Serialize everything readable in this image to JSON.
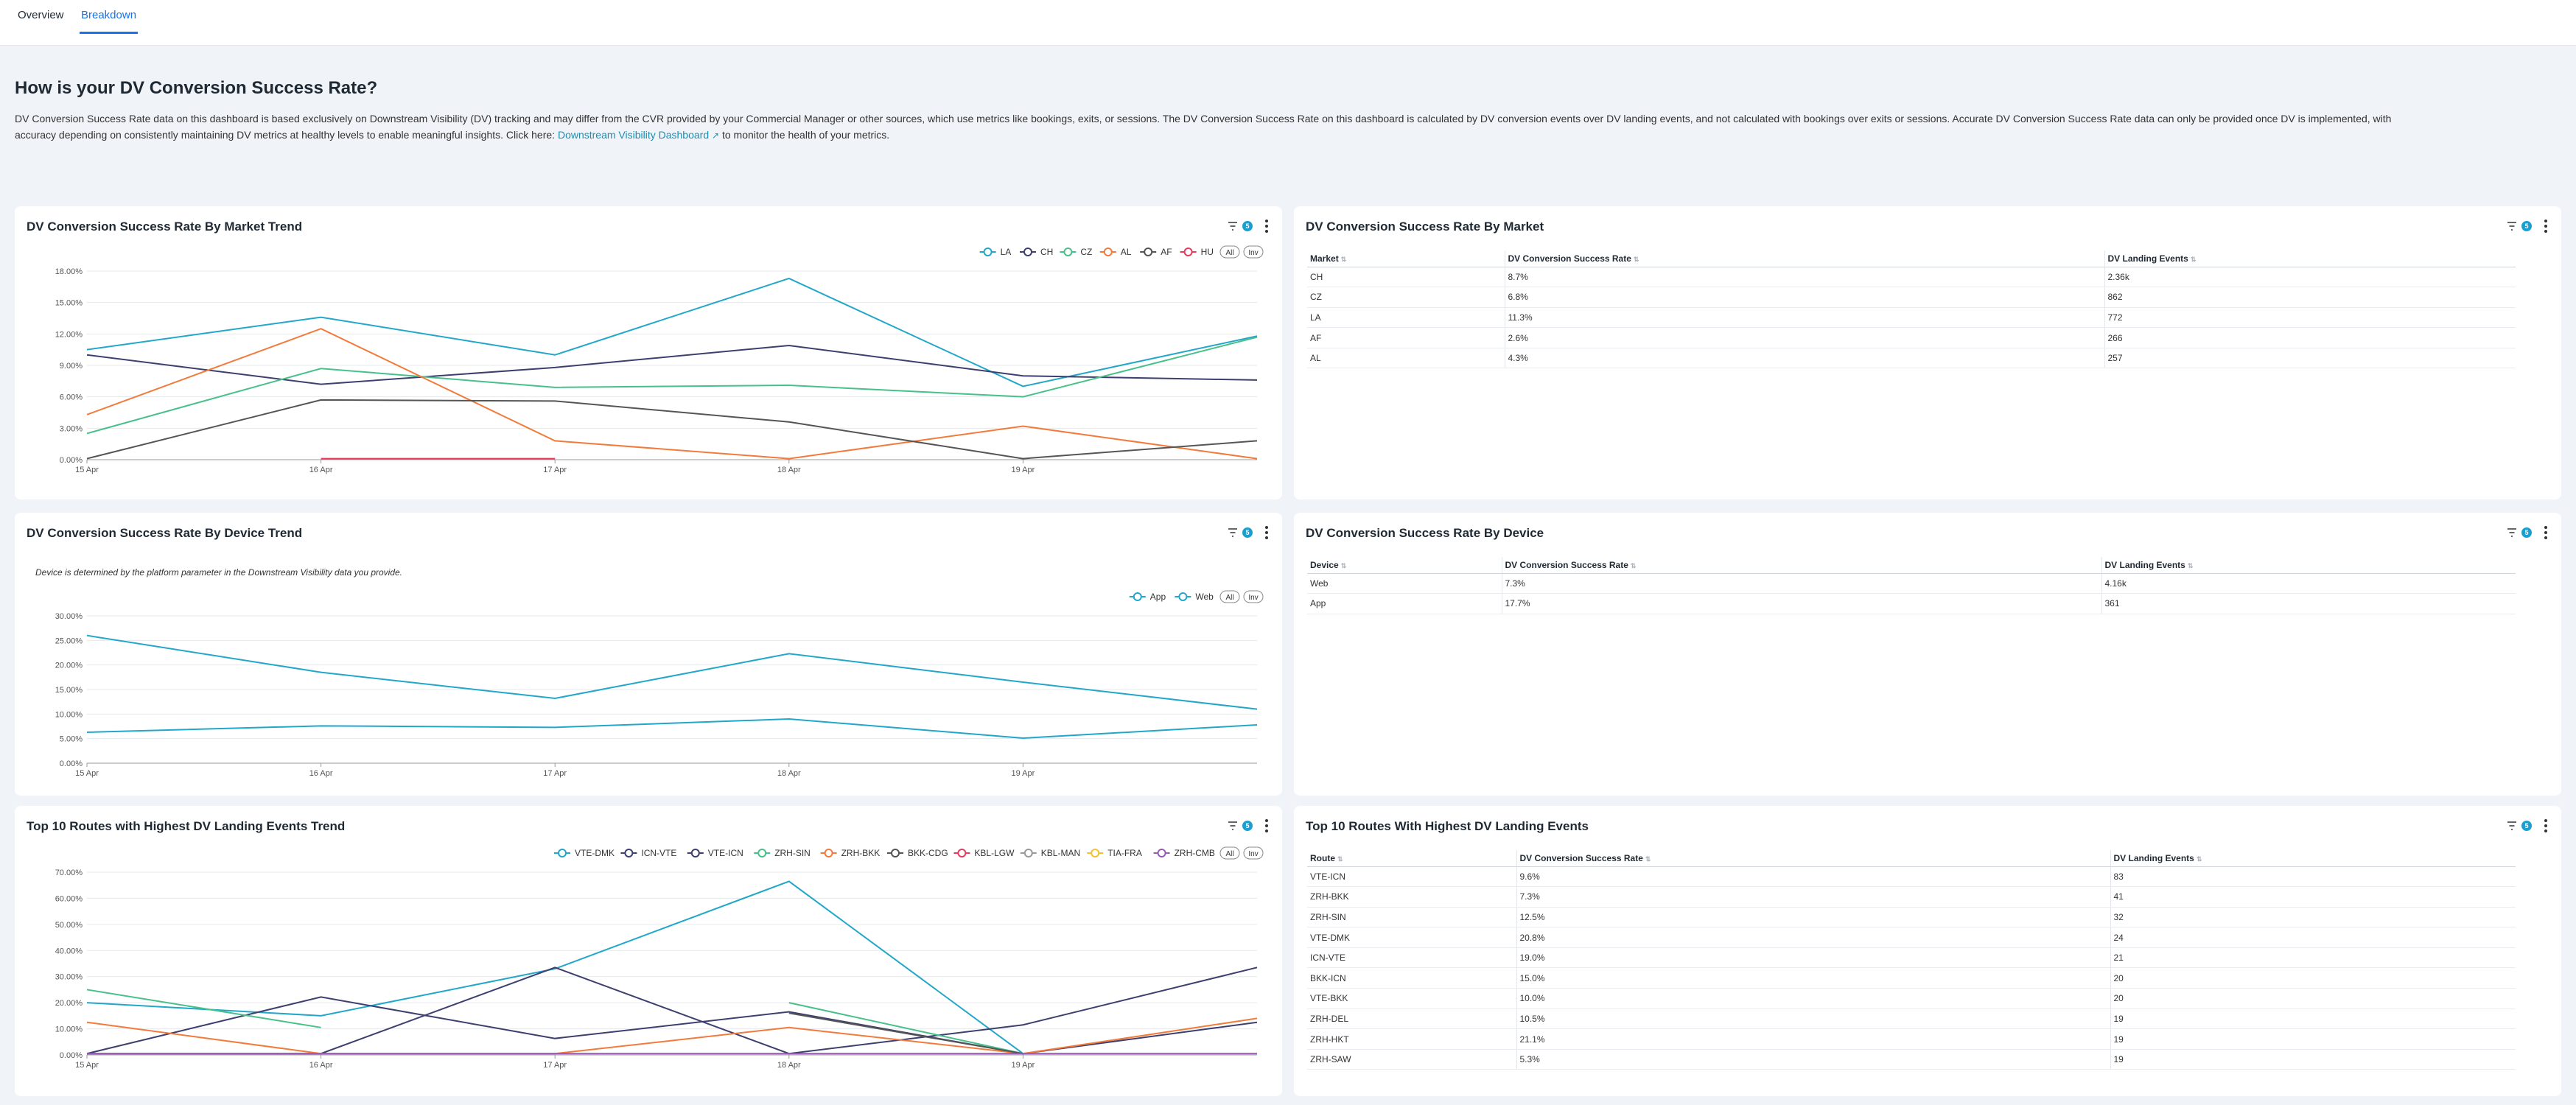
{
  "tabs": [
    {
      "label": "Overview"
    },
    {
      "label": "Breakdown"
    }
  ],
  "header": {
    "title": "How is your DV Conversion Success Rate?",
    "para1": "DV Conversion Success Rate data on this dashboard is based exclusively on Downstream Visibility (DV) tracking and may differ from the CVR provided by your Commercial Manager or other sources, which use metrics like bookings, exits, or sessions. The DV Conversion Success Rate on this dashboard is calculated by DV conversion events over DV landing events, and not calculated with bookings over exits or sessions. Accurate DV Conversion Success Rate data can only be provided once DV is implemented, with",
    "para2_pre": "accuracy depending on consistently maintaining DV metrics at healthy levels to enable meaningful insights. Click here: ",
    "link": "Downstream Visibility Dashboard",
    "para2_post": " to monitor the health of your metrics."
  },
  "colors": {
    "accent": "#1a73e8",
    "badge": "#1a9fd1",
    "LA": "#22a7c9",
    "CH": "#3d3f6e",
    "CZ": "#47c08a",
    "AL": "#f27b3c",
    "AF": "#555555",
    "HU": "#e83a5e",
    "App": "#22a7c9",
    "Web": "#22a7c9",
    "VTE-DMK": "#22a7c9",
    "ICN-VTE": "#3d3f6e",
    "VTE-ICN": "#3d3f6e",
    "ZRH-SIN": "#47c08a",
    "ZRH-BKK": "#f27b3c",
    "BKK-CDG": "#555555",
    "KBL-LGW": "#e83a5e",
    "KBL-MAN": "#999999",
    "TIA-FRA": "#f2c230",
    "ZRH-CMB": "#9b59b6"
  },
  "cards": {
    "market_trend": {
      "title": "DV Conversion Success Rate By Market Trend",
      "filter_count": "5"
    },
    "market_table": {
      "title": "DV Conversion Success Rate By Market",
      "filter_count": "5"
    },
    "device_trend": {
      "title": "DV Conversion Success Rate By Device Trend",
      "filter_count": "5",
      "note": "Device is determined by the platform parameter in the Downstream Visibility data you provide."
    },
    "device_table": {
      "title": "DV Conversion Success Rate By Device",
      "filter_count": "5"
    },
    "routes_trend": {
      "title": "Top 10 Routes with Highest DV Landing Events Trend",
      "filter_count": "5"
    },
    "routes_table": {
      "title": "Top 10 Routes With Highest DV Landing Events",
      "filter_count": "5"
    }
  },
  "legend_buttons": {
    "all": "All",
    "inv": "Inv"
  },
  "chart_data": [
    {
      "id": "market",
      "type": "line",
      "x": [
        "15 Apr",
        "16 Apr",
        "17 Apr",
        "18 Apr",
        "19 Apr",
        "20 Apr"
      ],
      "xticks": [
        "15 Apr",
        "16 Apr",
        "17 Apr",
        "18 Apr",
        "19 Apr"
      ],
      "yticks": [
        "0.00%",
        "3.00%",
        "6.00%",
        "9.00%",
        "12.00%",
        "15.00%",
        "18.00%"
      ],
      "ylim": [
        0,
        18
      ],
      "series": [
        {
          "name": "LA",
          "values": [
            10.5,
            13.6,
            10.0,
            17.3,
            7.0,
            11.8
          ]
        },
        {
          "name": "CH",
          "values": [
            10.0,
            7.2,
            8.8,
            10.9,
            8.0,
            7.6
          ]
        },
        {
          "name": "CZ",
          "values": [
            2.5,
            8.7,
            6.9,
            7.1,
            6.0,
            11.7
          ]
        },
        {
          "name": "AL",
          "values": [
            4.3,
            12.5,
            1.8,
            0.1,
            3.2,
            0.1
          ]
        },
        {
          "name": "AF",
          "values": [
            0.1,
            5.7,
            5.6,
            3.6,
            0.1,
            1.8
          ]
        },
        {
          "name": "HU",
          "values": [
            null,
            0.1,
            0.1,
            null,
            null,
            null
          ]
        }
      ]
    },
    {
      "id": "device",
      "type": "line",
      "x": [
        "15 Apr",
        "16 Apr",
        "17 Apr",
        "18 Apr",
        "19 Apr",
        "20 Apr"
      ],
      "xticks": [
        "15 Apr",
        "16 Apr",
        "17 Apr",
        "18 Apr",
        "19 Apr"
      ],
      "yticks": [
        "0.00%",
        "5.00%",
        "10.00%",
        "15.00%",
        "20.00%",
        "25.00%",
        "30.00%"
      ],
      "ylim": [
        0,
        30
      ],
      "series": [
        {
          "name": "App",
          "values": [
            26.0,
            18.5,
            13.2,
            22.3,
            16.5,
            11.0
          ]
        },
        {
          "name": "Web",
          "values": [
            6.3,
            7.6,
            7.3,
            9.0,
            5.1,
            7.8
          ]
        }
      ]
    },
    {
      "id": "routes",
      "type": "line",
      "x": [
        "15 Apr",
        "16 Apr",
        "17 Apr",
        "18 Apr",
        "19 Apr",
        "20 Apr"
      ],
      "xticks": [
        "15 Apr",
        "16 Apr",
        "17 Apr",
        "18 Apr",
        "19 Apr"
      ],
      "yticks": [
        "0.00%",
        "10.00%",
        "20.00%",
        "30.00%",
        "40.00%",
        "50.00%",
        "60.00%",
        "70.00%"
      ],
      "ylim": [
        0,
        70
      ],
      "series": [
        {
          "name": "VTE-DMK",
          "values": [
            20.0,
            15.0,
            33.0,
            66.5,
            0.5,
            null
          ]
        },
        {
          "name": "ICN-VTE",
          "values": [
            0.5,
            0.5,
            33.5,
            0.5,
            11.5,
            33.5
          ]
        },
        {
          "name": "VTE-ICN",
          "values": [
            0.5,
            22.2,
            6.3,
            16.5,
            0.5,
            12.5
          ]
        },
        {
          "name": "ZRH-SIN",
          "values": [
            25.0,
            10.5,
            null,
            20.0,
            0.5,
            null
          ]
        },
        {
          "name": "ZRH-BKK",
          "values": [
            12.5,
            0.5,
            0.5,
            10.5,
            0.5,
            14.0
          ]
        },
        {
          "name": "BKK-CDG",
          "values": [
            null,
            null,
            null,
            16.0,
            0.5,
            null
          ]
        },
        {
          "name": "KBL-LGW",
          "values": [
            null,
            null,
            null,
            null,
            null,
            null
          ]
        },
        {
          "name": "KBL-MAN",
          "values": [
            null,
            null,
            null,
            null,
            null,
            null
          ]
        },
        {
          "name": "TIA-FRA",
          "values": [
            null,
            null,
            null,
            null,
            null,
            null
          ]
        },
        {
          "name": "ZRH-CMB",
          "values": [
            0.5,
            0.5,
            0.5,
            0.5,
            0.5,
            0.5
          ]
        }
      ]
    }
  ],
  "tables": {
    "market": {
      "headers": [
        "Market",
        "DV Conversion Success Rate",
        "DV Landing Events"
      ],
      "rows": [
        [
          "CH",
          "8.7%",
          "2.36k"
        ],
        [
          "CZ",
          "6.8%",
          "862"
        ],
        [
          "LA",
          "11.3%",
          "772"
        ],
        [
          "AF",
          "2.6%",
          "266"
        ],
        [
          "AL",
          "4.3%",
          "257"
        ]
      ]
    },
    "device": {
      "headers": [
        "Device",
        "DV Conversion Success Rate",
        "DV Landing Events"
      ],
      "rows": [
        [
          "Web",
          "7.3%",
          "4.16k"
        ],
        [
          "App",
          "17.7%",
          "361"
        ]
      ]
    },
    "routes": {
      "headers": [
        "Route",
        "DV Conversion Success Rate",
        "DV Landing Events"
      ],
      "rows": [
        [
          "VTE-ICN",
          "9.6%",
          "83"
        ],
        [
          "ZRH-BKK",
          "7.3%",
          "41"
        ],
        [
          "ZRH-SIN",
          "12.5%",
          "32"
        ],
        [
          "VTE-DMK",
          "20.8%",
          "24"
        ],
        [
          "ICN-VTE",
          "19.0%",
          "21"
        ],
        [
          "BKK-ICN",
          "15.0%",
          "20"
        ],
        [
          "VTE-BKK",
          "10.0%",
          "20"
        ],
        [
          "ZRH-DEL",
          "10.5%",
          "19"
        ],
        [
          "ZRH-HKT",
          "21.1%",
          "19"
        ],
        [
          "ZRH-SAW",
          "5.3%",
          "19"
        ]
      ]
    }
  }
}
